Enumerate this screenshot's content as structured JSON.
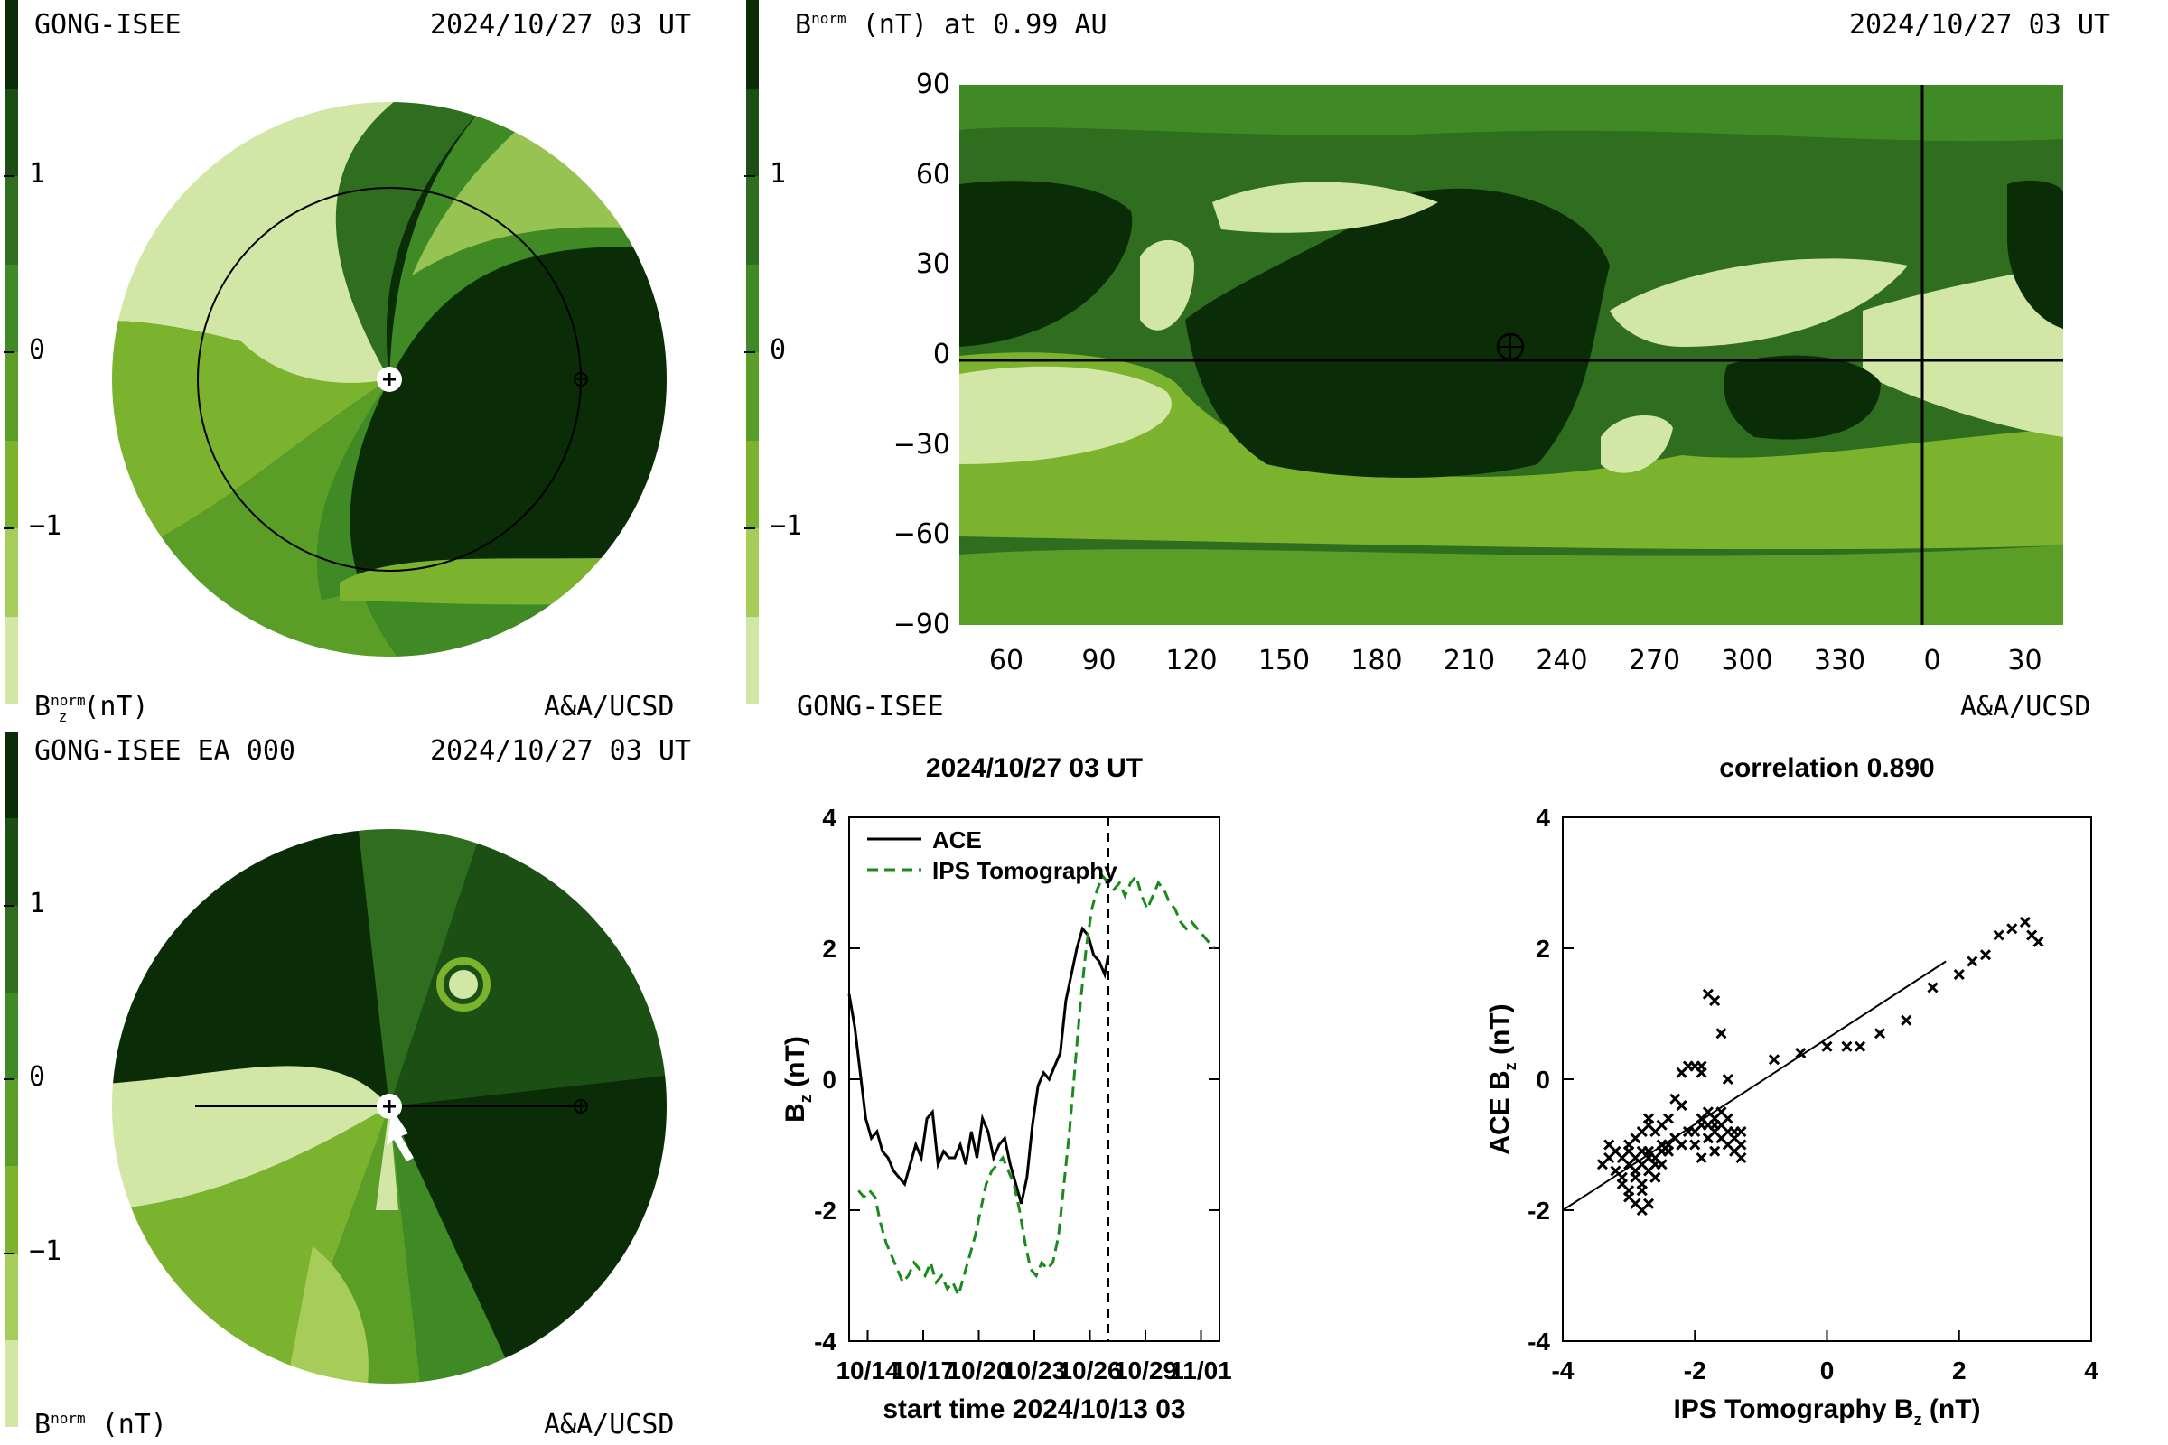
{
  "colors": {
    "levels": [
      "#0a2d08",
      "#1b4f14",
      "#2e6e1e",
      "#3f8a24",
      "#5a9e28",
      "#7bb32e",
      "#a6cc5a",
      "#d2e6a6"
    ],
    "plot_bg": "#2d6a18",
    "ace_line": "#000000",
    "ips_line": "#1a8a1a"
  },
  "colorbar": {
    "ticks": [
      "1",
      "0",
      "−1"
    ]
  },
  "panel_tl": {
    "title_left": "GONG-ISEE",
    "title_right": "2024/10/27 03 UT",
    "cb_label": "B",
    "cb_label_sub": "z",
    "cb_label_sup": "norm",
    "cb_label_unit": "(nT)",
    "footer_right": "A&A/UCSD"
  },
  "panel_tr": {
    "title_left_sup": "norm",
    "title_left_rest": "(nT) at 0.99 AU",
    "title_right": "2024/10/27 03 UT",
    "footer_left": "GONG-ISEE",
    "footer_right": "A&A/UCSD",
    "y_ticks": [
      "90",
      "60",
      "30",
      "0",
      "−30",
      "−60",
      "−90"
    ],
    "x_ticks": [
      "60",
      "90",
      "120",
      "150",
      "180",
      "210",
      "240",
      "270",
      "300",
      "330",
      "0",
      "30"
    ]
  },
  "panel_bl": {
    "title_left": "GONG-ISEE EA 000",
    "title_right": "2024/10/27 03 UT",
    "cb_label_unit": "(nT)",
    "footer_right": "A&A/UCSD"
  },
  "chart_data": [
    {
      "type": "line",
      "title": "2024/10/27 03 UT",
      "xlabel": "start time 2024/10/13 03",
      "ylabel": "B",
      "ylabel_sub": "z",
      "ylabel_unit": "(nT)",
      "ylim": [
        -4,
        4
      ],
      "xlim": [
        0,
        20
      ],
      "x_tick_labels": [
        "10/14",
        "10/17",
        "10/20",
        "10/23",
        "10/26",
        "10/29",
        "11/01"
      ],
      "x_tick_positions": [
        1,
        4,
        7,
        10,
        13,
        16,
        19
      ],
      "y_ticks": [
        "4",
        "2",
        "0",
        "-2",
        "-4"
      ],
      "y_tick_values": [
        4,
        2,
        0,
        -2,
        -4
      ],
      "now_marker_x": 14,
      "legend": [
        "ACE",
        "IPS Tomography"
      ],
      "legend_position": "top-left",
      "series": [
        {
          "name": "ACE",
          "style": "solid",
          "x": [
            0,
            0.3,
            0.6,
            0.9,
            1.2,
            1.5,
            1.8,
            2.1,
            2.4,
            2.7,
            3.0,
            3.3,
            3.6,
            3.9,
            4.2,
            4.5,
            4.8,
            5.1,
            5.4,
            5.7,
            6.0,
            6.3,
            6.6,
            6.9,
            7.2,
            7.5,
            7.8,
            8.1,
            8.4,
            8.7,
            9.0,
            9.3,
            9.6,
            9.9,
            10.2,
            10.5,
            10.8,
            11.1,
            11.4,
            11.7,
            12.0,
            12.3,
            12.6,
            12.9,
            13.2,
            13.5,
            13.8,
            14.0
          ],
          "y": [
            1.3,
            0.8,
            0.1,
            -0.6,
            -0.9,
            -0.8,
            -1.1,
            -1.2,
            -1.4,
            -1.5,
            -1.6,
            -1.3,
            -1.0,
            -1.2,
            -0.6,
            -0.5,
            -1.3,
            -1.1,
            -1.2,
            -1.2,
            -1.0,
            -1.3,
            -0.8,
            -1.2,
            -0.6,
            -0.8,
            -1.2,
            -1.0,
            -0.9,
            -1.3,
            -1.6,
            -1.9,
            -1.5,
            -0.7,
            -0.1,
            0.1,
            0.0,
            0.2,
            0.4,
            1.2,
            1.6,
            2.0,
            2.3,
            2.2,
            1.9,
            1.8,
            1.6,
            1.9
          ]
        },
        {
          "name": "IPS Tomography",
          "style": "dashed",
          "x": [
            0.5,
            0.8,
            1.1,
            1.4,
            1.7,
            2.0,
            2.3,
            2.6,
            2.9,
            3.2,
            3.5,
            3.8,
            4.1,
            4.4,
            4.7,
            5.0,
            5.3,
            5.6,
            5.9,
            6.2,
            6.5,
            6.8,
            7.1,
            7.4,
            7.7,
            8.0,
            8.3,
            8.6,
            8.9,
            9.2,
            9.5,
            9.8,
            10.1,
            10.4,
            10.7,
            11.0,
            11.3,
            11.6,
            11.9,
            12.2,
            12.5,
            12.8,
            13.1,
            13.4,
            13.7,
            14.0,
            14.3,
            14.6,
            14.9,
            15.2,
            15.5,
            15.8,
            16.1,
            16.4,
            16.7,
            17.0,
            17.3,
            17.6,
            17.9,
            18.2,
            18.5,
            18.8,
            19.1,
            19.4,
            19.7
          ],
          "y": [
            -1.7,
            -1.8,
            -1.7,
            -1.8,
            -2.2,
            -2.5,
            -2.7,
            -2.9,
            -3.1,
            -3.0,
            -2.8,
            -2.9,
            -3.0,
            -2.8,
            -3.1,
            -3.0,
            -3.2,
            -3.1,
            -3.3,
            -3.0,
            -2.7,
            -2.4,
            -2.0,
            -1.6,
            -1.4,
            -1.3,
            -1.2,
            -1.4,
            -1.6,
            -2.0,
            -2.5,
            -2.9,
            -3.0,
            -2.8,
            -2.9,
            -2.8,
            -2.4,
            -1.6,
            -0.8,
            0.2,
            1.2,
            2.0,
            2.6,
            2.9,
            3.1,
            3.0,
            2.9,
            3.0,
            2.8,
            3.0,
            3.1,
            2.8,
            2.6,
            2.8,
            3.0,
            2.9,
            2.7,
            2.6,
            2.4,
            2.3,
            2.4,
            2.3,
            2.2,
            2.1,
            2.0
          ]
        }
      ]
    },
    {
      "type": "scatter",
      "title": "correlation 0.890",
      "xlabel": "IPS Tomography B",
      "xlabel_sub": "z",
      "xlabel_unit": "(nT)",
      "ylabel": "ACE B",
      "ylabel_sub": "z",
      "ylabel_unit": "(nT)",
      "xlim": [
        -4,
        4
      ],
      "ylim": [
        -4,
        4
      ],
      "x_ticks": [
        "-4",
        "-2",
        "0",
        "2",
        "4"
      ],
      "y_ticks": [
        "4",
        "2",
        "0",
        "-2",
        "-4"
      ],
      "tick_values": [
        -4,
        -2,
        0,
        2,
        4
      ],
      "fit_line": {
        "x": [
          -4.0,
          1.8
        ],
        "y": [
          -2.0,
          1.8
        ]
      },
      "points": {
        "x": [
          -3.4,
          -3.3,
          -3.2,
          -3.2,
          -3.1,
          -3.1,
          -3.0,
          -3.0,
          -3.0,
          -2.9,
          -2.9,
          -2.9,
          -2.9,
          -2.8,
          -2.8,
          -2.8,
          -2.8,
          -2.7,
          -2.7,
          -2.7,
          -2.7,
          -2.6,
          -2.6,
          -2.6,
          -2.5,
          -2.5,
          -2.5,
          -2.4,
          -2.4,
          -2.3,
          -2.3,
          -2.2,
          -2.2,
          -2.1,
          -2.0,
          -2.0,
          -1.9,
          -1.9,
          -1.8,
          -1.8,
          -1.8,
          -1.7,
          -1.7,
          -1.7,
          -1.6,
          -1.6,
          -1.6,
          -1.5,
          -1.5,
          -1.5,
          -1.4,
          -1.4,
          -1.3,
          -1.3,
          -3.1,
          -3.0,
          -2.9,
          -2.8,
          -2.7,
          -2.6,
          -2.5,
          -2.4,
          -2.3,
          -2.2,
          -2.1,
          -2.0,
          -1.9,
          -1.9,
          -1.8,
          -1.8,
          -1.7,
          -1.7,
          -1.6,
          -1.5,
          -1.4,
          -1.3,
          -0.8,
          -0.4,
          0.0,
          0.3,
          0.5,
          0.8,
          1.2,
          1.6,
          2.0,
          2.2,
          2.4,
          2.6,
          2.8,
          3.0,
          3.1,
          3.2,
          -2.9,
          -2.8,
          -2.7,
          -3.3,
          -3.0,
          -2.6,
          -2.2,
          -1.9
        ],
        "y": [
          -1.3,
          -1.2,
          -1.4,
          -1.1,
          -1.5,
          -1.2,
          -1.7,
          -1.3,
          -1.0,
          -1.9,
          -1.5,
          -1.2,
          -0.9,
          -2.0,
          -1.6,
          -1.3,
          -0.8,
          -1.9,
          -1.4,
          -1.1,
          -0.6,
          -1.5,
          -1.2,
          -0.8,
          -1.3,
          -1.0,
          -0.7,
          -1.1,
          -0.6,
          -0.9,
          -0.3,
          -1.0,
          0.1,
          0.2,
          0.2,
          -0.8,
          -0.7,
          0.2,
          -0.9,
          -0.5,
          1.3,
          -0.8,
          -0.6,
          1.2,
          -0.9,
          -0.7,
          0.7,
          -1.0,
          -0.6,
          0.0,
          -0.8,
          -1.1,
          -1.0,
          -1.2,
          -1.6,
          -1.1,
          -1.4,
          -1.7,
          -1.2,
          -1.3,
          -1.1,
          -1.0,
          -0.9,
          -1.0,
          -0.8,
          -1.0,
          -0.6,
          -1.2,
          -0.7,
          -0.9,
          -1.1,
          -0.7,
          -0.5,
          -0.8,
          -0.9,
          -0.8,
          0.3,
          0.4,
          0.5,
          0.5,
          0.5,
          0.7,
          0.9,
          1.4,
          1.6,
          1.8,
          1.9,
          2.2,
          2.3,
          2.4,
          2.2,
          2.1,
          -1.4,
          -1.1,
          -0.7,
          -1.0,
          -1.8,
          -1.5,
          -0.4,
          0.1
        ]
      }
    }
  ]
}
